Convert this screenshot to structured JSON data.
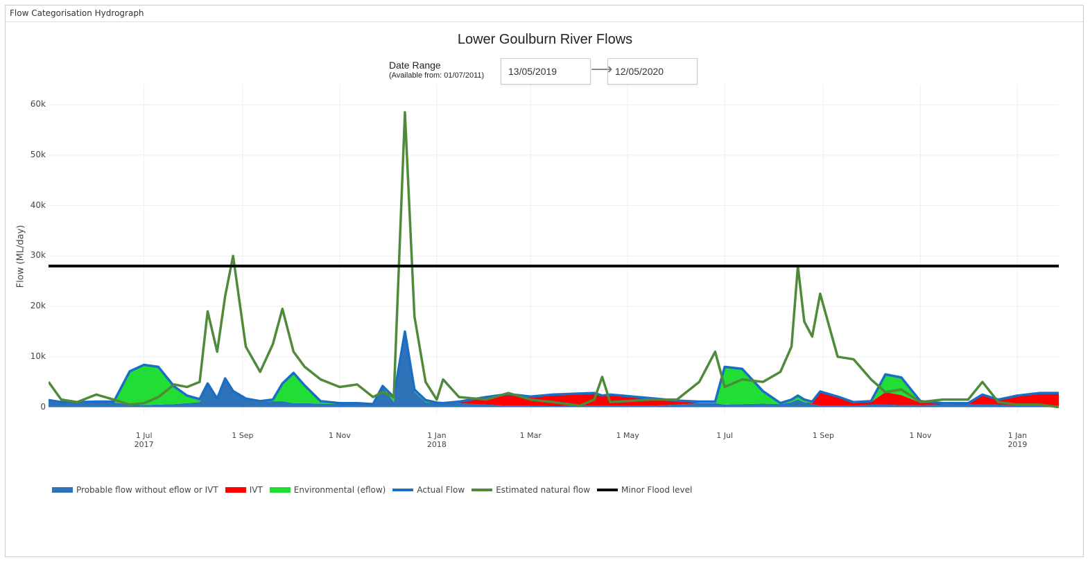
{
  "panel": {
    "title": "Flow Categorisation Hydrograph"
  },
  "date_range": {
    "label": "Date Range",
    "available": "(Available from: 01/07/2011)",
    "start": "13/05/2019",
    "end": "12/05/2020"
  },
  "chart_data": {
    "type": "area",
    "title": "Lower Goulburn River Flows",
    "y_label": "Flow (ML/day)",
    "x": [
      "2017-05-02",
      "2017-05-10",
      "2017-05-20",
      "2017-06-01",
      "2017-06-12",
      "2017-06-22",
      "2017-07-01",
      "2017-07-10",
      "2017-07-20",
      "2017-07-28",
      "2017-08-05",
      "2017-08-10",
      "2017-08-16",
      "2017-08-21",
      "2017-08-26",
      "2017-09-03",
      "2017-09-12",
      "2017-09-20",
      "2017-09-26",
      "2017-10-03",
      "2017-10-10",
      "2017-10-20",
      "2017-11-01",
      "2017-11-12",
      "2017-11-22",
      "2017-11-28",
      "2017-12-05",
      "2017-12-12",
      "2017-12-18",
      "2017-12-25",
      "2018-01-01",
      "2018-01-05",
      "2018-01-15",
      "2018-02-01",
      "2018-02-15",
      "2018-03-01",
      "2018-03-15",
      "2018-04-01",
      "2018-04-10",
      "2018-04-15",
      "2018-04-20",
      "2018-05-15",
      "2018-06-01",
      "2018-06-15",
      "2018-06-25",
      "2018-07-01",
      "2018-07-12",
      "2018-07-25",
      "2018-08-05",
      "2018-08-12",
      "2018-08-16",
      "2018-08-20",
      "2018-08-25",
      "2018-08-30",
      "2018-09-10",
      "2018-09-20",
      "2018-10-01",
      "2018-10-10",
      "2018-10-20",
      "2018-11-01",
      "2018-11-15",
      "2018-12-01",
      "2018-12-10",
      "2018-12-20",
      "2019-01-01",
      "2019-01-15",
      "2019-01-27"
    ],
    "series": [
      {
        "name": "Probable flow without eflow or IVT",
        "color": "#2f72b8",
        "style": "area",
        "values": [
          1200,
          800,
          800,
          900,
          900,
          600,
          400,
          500,
          600,
          800,
          1000,
          4500,
          1500,
          5500,
          3000,
          1500,
          1000,
          1200,
          1200,
          800,
          800,
          700,
          600,
          600,
          500,
          4000,
          1000,
          14500,
          3000,
          1000,
          800,
          800,
          800,
          500,
          300,
          300,
          200,
          300,
          300,
          300,
          300,
          300,
          500,
          800,
          800,
          500,
          600,
          700,
          600,
          1000,
          1500,
          1000,
          600,
          300,
          300,
          300,
          500,
          500,
          400,
          400,
          500,
          600,
          500,
          500,
          300,
          300,
          300
        ]
      },
      {
        "name": "IVT",
        "color": "#ff0000",
        "style": "area",
        "values": [
          0,
          0,
          0,
          0,
          0,
          0,
          0,
          0,
          0,
          0,
          0,
          0,
          0,
          0,
          0,
          0,
          0,
          0,
          0,
          0,
          0,
          0,
          0,
          0,
          0,
          0,
          0,
          0,
          0,
          0,
          0,
          0,
          300,
          1500,
          2300,
          1800,
          2300,
          2400,
          2500,
          2000,
          2200,
          1500,
          800,
          0,
          0,
          0,
          0,
          0,
          0,
          0,
          0,
          0,
          200,
          2800,
          1800,
          700,
          500,
          2500,
          2000,
          500,
          300,
          200,
          2000,
          1000,
          2000,
          2500,
          2500
        ]
      },
      {
        "name": "Environmental (eflow)",
        "color": "#22dd33",
        "style": "area",
        "values": [
          200,
          200,
          200,
          200,
          200,
          6500,
          8000,
          7500,
          3500,
          1500,
          600,
          200,
          200,
          200,
          200,
          200,
          200,
          300,
          3500,
          6000,
          3500,
          500,
          200,
          200,
          100,
          200,
          1000,
          500,
          500,
          400,
          100,
          0,
          0,
          0,
          0,
          0,
          0,
          0,
          0,
          0,
          0,
          0,
          0,
          300,
          300,
          7500,
          7000,
          2500,
          200,
          500,
          800,
          500,
          300,
          0,
          0,
          0,
          200,
          3500,
          3500,
          300,
          0,
          0,
          0,
          0,
          0,
          0,
          0
        ]
      },
      {
        "name": "Actual Flow",
        "color": "#1a6fc4",
        "style": "line",
        "values": [
          1400,
          1000,
          1000,
          1100,
          1100,
          7100,
          8400,
          8000,
          4100,
          2300,
          1600,
          4700,
          1700,
          5700,
          3200,
          1700,
          1200,
          1500,
          4700,
          6800,
          4300,
          1200,
          800,
          800,
          600,
          4200,
          2000,
          15000,
          3500,
          1400,
          900,
          800,
          1100,
          2000,
          2600,
          2100,
          2500,
          2700,
          2800,
          2300,
          2500,
          1800,
          1300,
          1100,
          1100,
          8000,
          7600,
          3200,
          800,
          1500,
          2300,
          1500,
          1100,
          3100,
          2100,
          1000,
          1200,
          6500,
          5900,
          1200,
          800,
          800,
          2500,
          1500,
          2300,
          2800,
          2800
        ]
      },
      {
        "name": "Estimated natural flow",
        "color": "#4e8a3a",
        "style": "line",
        "values": [
          5000,
          1500,
          1000,
          2500,
          1500,
          500,
          800,
          2000,
          4500,
          4000,
          5000,
          19000,
          11000,
          22000,
          30000,
          12000,
          7000,
          12500,
          19500,
          11000,
          8000,
          5500,
          4000,
          4500,
          2000,
          3000,
          2000,
          58500,
          18000,
          5000,
          1500,
          5500,
          2000,
          1500,
          2800,
          1500,
          1000,
          300,
          1500,
          6000,
          1000,
          1500,
          1500,
          5000,
          11000,
          4000,
          5500,
          5000,
          7000,
          12000,
          28000,
          17000,
          14000,
          22500,
          10000,
          9500,
          5500,
          3000,
          3500,
          1000,
          1500,
          1500,
          5000,
          1000,
          500,
          500,
          0
        ]
      },
      {
        "name": "Minor Flood level",
        "color": "#000000",
        "style": "hline",
        "value": 28000
      }
    ],
    "xlim": [
      "2017-05-02",
      "2019-01-27"
    ],
    "xticks": [
      {
        "value": "2017-07-01",
        "label": "1 Jul\n2017"
      },
      {
        "value": "2017-09-01",
        "label": "1 Sep"
      },
      {
        "value": "2017-11-01",
        "label": "1 Nov"
      },
      {
        "value": "2018-01-01",
        "label": "1 Jan\n2018"
      },
      {
        "value": "2018-03-01",
        "label": "1 Mar"
      },
      {
        "value": "2018-05-01",
        "label": "1 May"
      },
      {
        "value": "2018-07-01",
        "label": "1 Jul"
      },
      {
        "value": "2018-09-01",
        "label": "1 Sep"
      },
      {
        "value": "2018-11-01",
        "label": "1 Nov"
      },
      {
        "value": "2019-01-01",
        "label": "1 Jan\n2019"
      }
    ],
    "ylim": [
      -1300,
      64000
    ],
    "yticks": [
      0,
      {
        "value": 10000,
        "label": "10k"
      },
      {
        "value": 20000,
        "label": "20k"
      },
      {
        "value": 30000,
        "label": "30k"
      },
      {
        "value": 40000,
        "label": "40k"
      },
      {
        "value": 50000,
        "label": "50k"
      },
      {
        "value": 60000,
        "label": "60k"
      }
    ],
    "grid": true
  }
}
